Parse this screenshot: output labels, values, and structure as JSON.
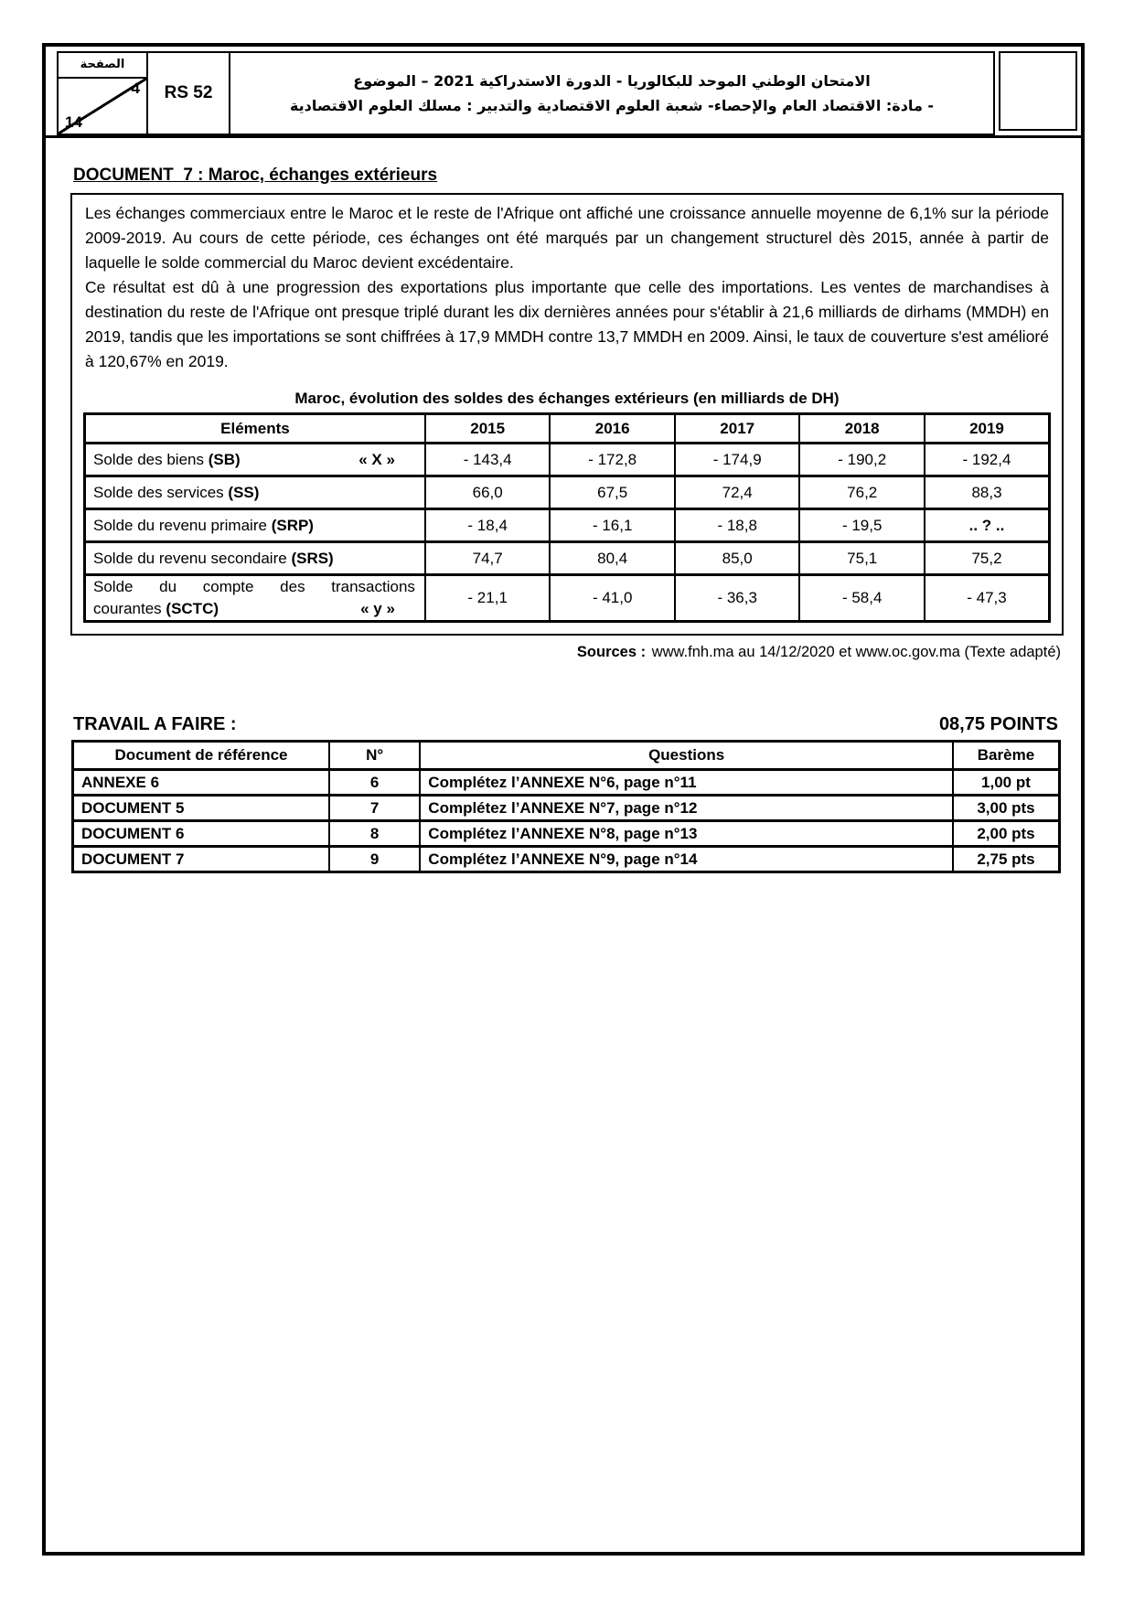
{
  "header": {
    "page_label": "الصفحة",
    "page_number": "4",
    "page_total": "14",
    "code": "RS 52",
    "title_line1": "الامتحان الوطني الموحد للبكالوريا - الدورة الاستدراكية 2021 – الموضوع",
    "title_line2": "- مادة: الاقتصاد العام والإحصاء- شعبة العلوم الاقتصادية والتدبير : مسلك العلوم الاقتصادية"
  },
  "document7": {
    "title": "DOCUMENT  7 : Maroc, échanges extérieurs",
    "paragraph1": "Les échanges commerciaux entre le Maroc et le reste de l'Afrique ont affiché une croissance annuelle moyenne de 6,1% sur la période 2009-2019. Au cours de cette période, ces échanges ont été marqués par un changement structurel dès 2015, année à partir de laquelle le solde commercial du Maroc devient excédentaire.",
    "paragraph2": "Ce résultat est dû à une progression des exportations plus importante que celle des importations. Les ventes de marchandises à destination du reste de l'Afrique ont presque triplé durant les dix dernières années pour s'établir à 21,6 milliards de dirhams (MMDH) en 2019, tandis que les importations se sont chiffrées à 17,9 MMDH contre 13,7 MMDH en 2009. Ainsi, le taux de couverture s'est amélioré à 120,67% en 2019.",
    "table": {
      "title": "Maroc, évolution des soldes des échanges extérieurs (en milliards de DH)",
      "col_header": "Eléments",
      "years": [
        "2015",
        "2016",
        "2017",
        "2018",
        "2019"
      ],
      "rows": [
        {
          "label": "Solde des biens",
          "code": "(SB)",
          "note": "« X »",
          "values": [
            "- 143,4",
            "- 172,8",
            "- 174,9",
            "- 190,2",
            "- 192,4"
          ]
        },
        {
          "label": "Solde des services",
          "code": "(SS)",
          "note": "",
          "values": [
            "66,0",
            "67,5",
            "72,4",
            "76,2",
            "88,3"
          ]
        },
        {
          "label": "Solde du revenu primaire",
          "code": "(SRP)",
          "note": "",
          "values": [
            "- 18,4",
            "- 16,1",
            "- 18,8",
            "- 19,5",
            ".. ? .."
          ]
        },
        {
          "label": "Solde du revenu secondaire",
          "code": "(SRS)",
          "note": "",
          "values": [
            "74,7",
            "80,4",
            "85,0",
            "75,1",
            "75,2"
          ]
        },
        {
          "label_line1": "Solde du compte des transactions",
          "label_line2": "courantes",
          "code": "(SCTC)",
          "note": "« y »",
          "values": [
            "- 21,1",
            "- 41,0",
            "- 36,3",
            "- 58,4",
            "- 47,3"
          ]
        }
      ]
    },
    "sources_label": "Sources :",
    "sources_text": "www.fnh.ma au 14/12/2020 et www.oc.gov.ma (Texte adapté)"
  },
  "travail": {
    "title": "TRAVAIL A FAIRE :",
    "points": "08,75 POINTS",
    "headers": [
      "Document de référence",
      "N°",
      "Questions",
      "Barème"
    ],
    "rows": [
      {
        "document": "ANNEXE 6",
        "num": "6",
        "question": "Complétez l’ANNEXE N°6, page n°11",
        "bareme": "1,00 pt"
      },
      {
        "document": "DOCUMENT 5",
        "num": "7",
        "question": "Complétez l’ANNEXE N°7, page n°12",
        "bareme": "3,00 pts"
      },
      {
        "document": "DOCUMENT 6",
        "num": "8",
        "question": "Complétez l’ANNEXE N°8, page n°13",
        "bareme": "2,00 pts"
      },
      {
        "document": "DOCUMENT 7",
        "num": "9",
        "question": "Complétez l’ANNEXE N°9, page n°14",
        "bareme": "2,75 pts"
      }
    ]
  }
}
